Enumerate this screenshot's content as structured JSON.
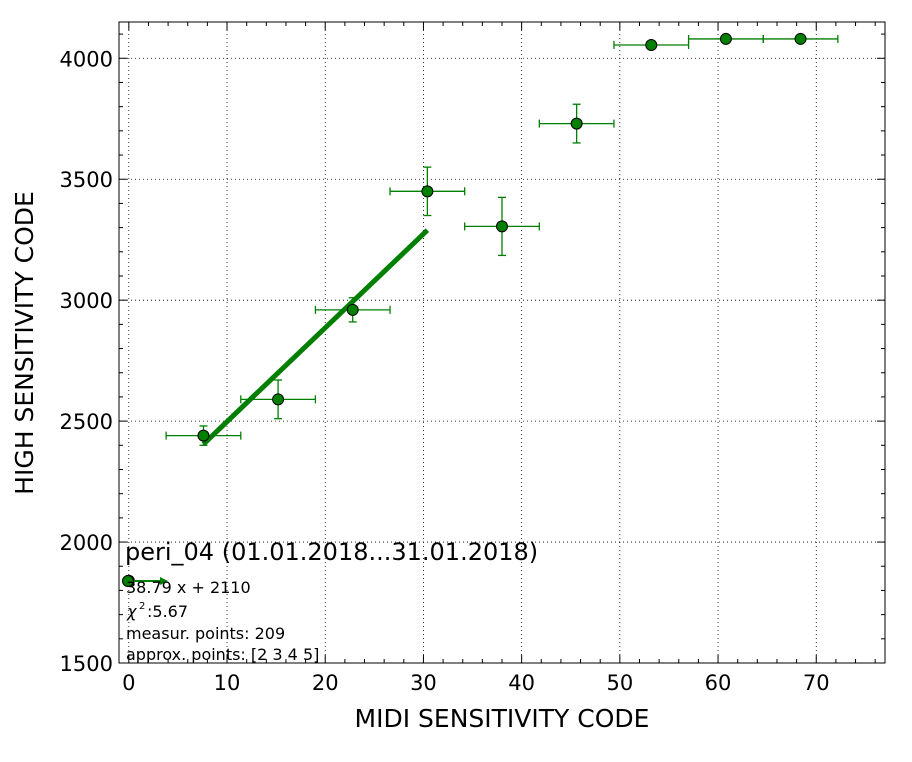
{
  "chart_data": {
    "type": "scatter",
    "title": "",
    "xlabel": "MIDI SENSITIVITY CODE",
    "ylabel": "HIGH SENSITIVITY CODE",
    "xlim": [
      -1,
      77
    ],
    "ylim": [
      1500,
      4150
    ],
    "xticks": [
      0,
      10,
      20,
      30,
      40,
      50,
      60,
      70
    ],
    "yticks": [
      1500,
      2000,
      2500,
      3000,
      3500,
      4000
    ],
    "grid": true,
    "legend_position": "lower-left",
    "colors": {
      "series": "#007f00",
      "marker_edge": "#000000",
      "grid": "#000000"
    },
    "series": [
      {
        "kind": "errorbar",
        "points": [
          {
            "x": 0.0,
            "y": 1840,
            "xerr": 0.2,
            "yerr": 0
          },
          {
            "x": 7.6,
            "y": 2440,
            "xerr": 3.8,
            "yerr": 40
          },
          {
            "x": 15.2,
            "y": 2590,
            "xerr": 3.8,
            "yerr": 80
          },
          {
            "x": 22.8,
            "y": 2960,
            "xerr": 3.8,
            "yerr": 50
          },
          {
            "x": 30.4,
            "y": 3450,
            "xerr": 3.8,
            "yerr": 100
          },
          {
            "x": 38.0,
            "y": 3305,
            "xerr": 3.8,
            "yerr": 120
          },
          {
            "x": 45.6,
            "y": 3730,
            "xerr": 3.8,
            "yerr": 80
          },
          {
            "x": 53.2,
            "y": 4055,
            "xerr": 3.8,
            "yerr": 0
          },
          {
            "x": 60.8,
            "y": 4080,
            "xerr": 3.8,
            "yerr": 0
          },
          {
            "x": 68.4,
            "y": 4080,
            "xerr": 3.8,
            "yerr": 0
          }
        ]
      },
      {
        "kind": "fit-line",
        "slope": 38.79,
        "intercept": 2110,
        "x_range": [
          7.6,
          30.4
        ]
      }
    ],
    "legend": {
      "title": "peri_04 (01.01.2018...31.01.2018)",
      "fit_label": "38.79 x + 2110",
      "chi2_label": ":5.67",
      "measur_label": "measur. points: 209",
      "approx_label": "approx. points: [2 3 4 5]"
    }
  }
}
